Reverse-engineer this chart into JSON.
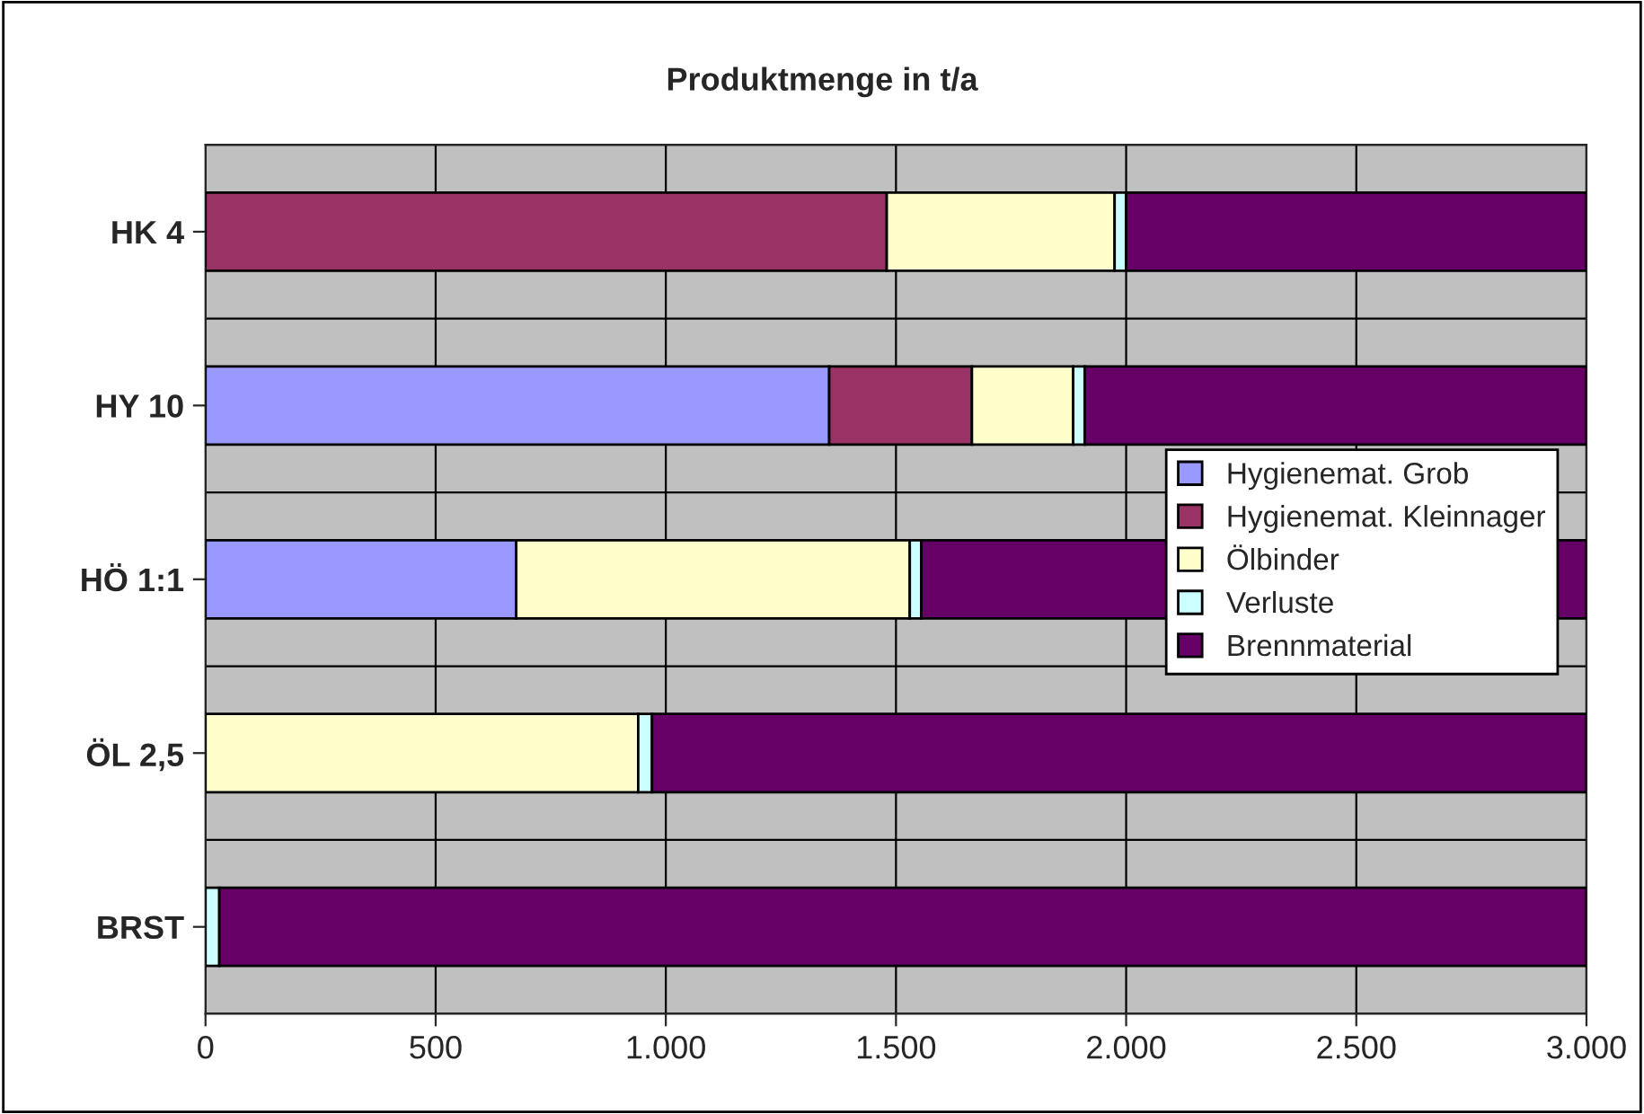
{
  "chart_data": {
    "type": "bar",
    "orientation": "horizontal",
    "stacked": true,
    "title": "Produktmenge in t/a",
    "categories": [
      "HK 4",
      "HY 10",
      "HÖ 1:1",
      "ÖL 2,5",
      "BRST"
    ],
    "series": [
      {
        "name": "Hygienemat. Grob",
        "color": "#9999ff",
        "values": [
          null,
          1355,
          675,
          null,
          null
        ]
      },
      {
        "name": "Hygienemat. Kleinnager",
        "color": "#993366",
        "values": [
          1480,
          310,
          null,
          null,
          null
        ]
      },
      {
        "name": "Ölbinder",
        "color": "#ffffcc",
        "values": [
          495,
          220,
          855,
          940,
          null
        ]
      },
      {
        "name": "Verluste",
        "color": "#ccffff",
        "values": [
          25,
          25,
          25,
          30,
          30
        ]
      },
      {
        "name": "Brennmaterial",
        "color": "#660066",
        "values": [
          1000,
          1090,
          1445,
          2030,
          2970
        ]
      }
    ],
    "xlim": [
      0,
      3000
    ],
    "xticks": [
      0,
      500,
      {
        "value": 1000,
        "label": "1.000"
      },
      {
        "value": 1500,
        "label": "1.500"
      },
      {
        "value": 2000,
        "label": "2.000"
      },
      {
        "value": 2500,
        "label": "2.500"
      },
      {
        "value": 3000,
        "label": "3.000"
      }
    ],
    "grid": true,
    "legend": "right"
  }
}
